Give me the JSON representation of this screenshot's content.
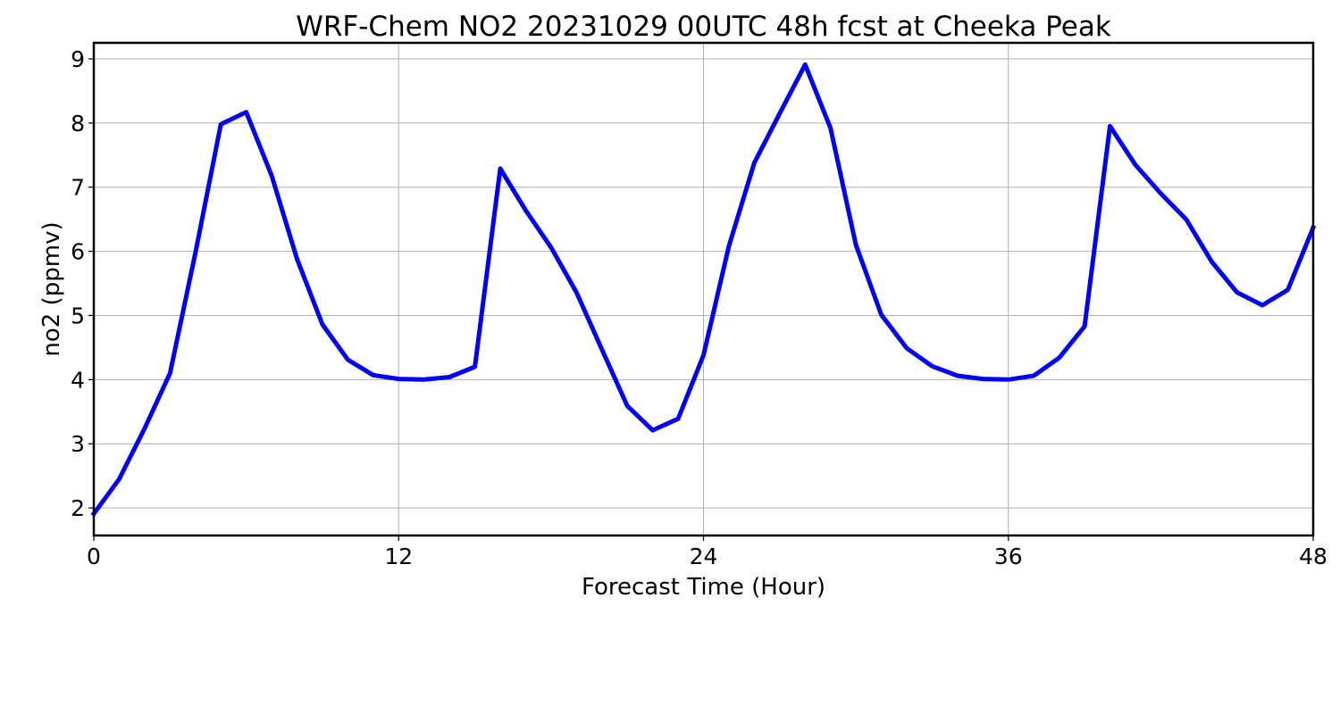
{
  "chart_data": {
    "type": "line",
    "title": "WRF-Chem NO2  20231029 00UTC 48h fcst at Cheeka Peak",
    "xlabel": "Forecast Time (Hour)",
    "ylabel": "no2  (ppmv)",
    "xlim": [
      0,
      48
    ],
    "ylim": [
      1.57,
      9.25
    ],
    "xticks": [
      0,
      12,
      24,
      36,
      48
    ],
    "yticks": [
      2,
      3,
      4,
      5,
      6,
      7,
      8,
      9
    ],
    "grid": true,
    "series": [
      {
        "color": "#0000ff",
        "x": [
          0,
          1,
          2,
          3,
          4,
          5,
          6,
          7,
          8,
          9,
          10,
          11,
          12,
          13,
          14,
          15,
          16,
          17,
          18,
          19,
          20,
          21,
          22,
          23,
          24,
          25,
          26,
          27,
          28,
          29,
          30,
          31,
          32,
          33,
          34,
          35,
          36,
          37,
          38,
          39,
          40,
          41,
          42,
          43,
          44,
          45,
          46,
          47,
          48
        ],
        "values": [
          1.91,
          2.45,
          3.24,
          4.1,
          5.98,
          7.98,
          8.17,
          7.18,
          5.88,
          4.86,
          4.31,
          4.07,
          4.01,
          4.0,
          4.04,
          4.2,
          7.29,
          6.64,
          6.06,
          5.36,
          4.47,
          3.59,
          3.21,
          3.39,
          4.38,
          6.08,
          7.38,
          8.15,
          8.91,
          7.92,
          6.1,
          5.01,
          4.49,
          4.21,
          4.06,
          4.01,
          4.0,
          4.06,
          4.34,
          4.83,
          7.95,
          7.35,
          6.9,
          6.5,
          5.84,
          5.36,
          5.16,
          5.4,
          6.37
        ]
      }
    ]
  }
}
